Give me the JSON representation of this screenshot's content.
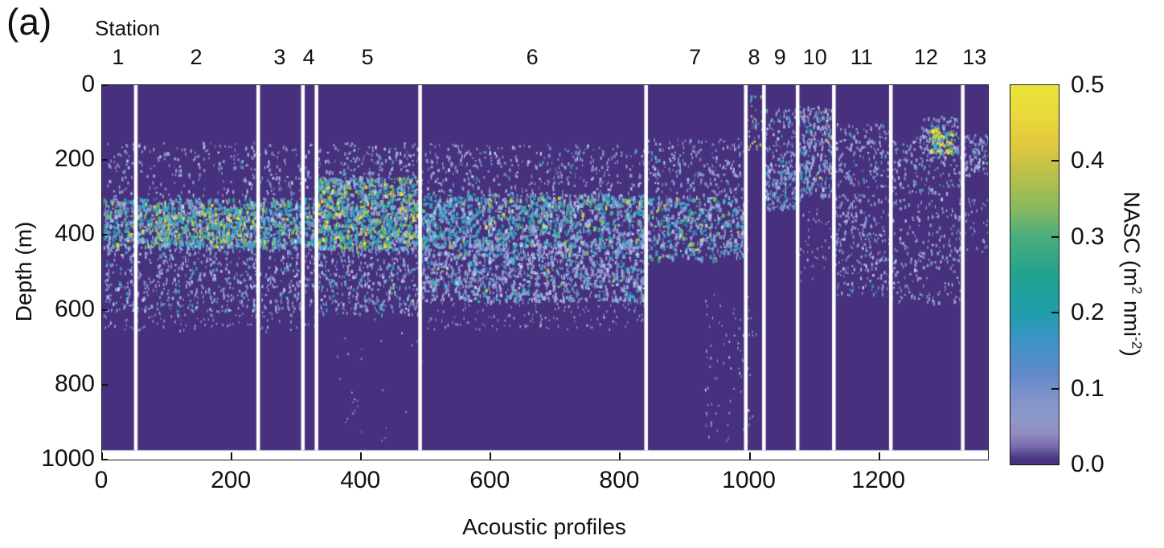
{
  "chart_data": {
    "type": "heatmap",
    "title_panel": "(a)",
    "station_axis_title": "Station",
    "xlabel": "Acoustic profiles",
    "ylabel": "Depth (m)",
    "x_range": [
      0,
      1368
    ],
    "depth_range_m": [
      0,
      1000
    ],
    "x_ticks": [
      0,
      200,
      400,
      600,
      800,
      1000,
      1200
    ],
    "y_ticks": [
      0,
      200,
      400,
      600,
      800,
      1000
    ],
    "background_color": "#47307d",
    "divider_color": "#ffffff",
    "no_data_color": "#ffffff",
    "data_max_depth_m": 975,
    "frame_color": "#1a1a1a",
    "stations": [
      {
        "label": "1",
        "from": 0,
        "to": 52
      },
      {
        "label": "2",
        "from": 52,
        "to": 241
      },
      {
        "label": "3",
        "from": 241,
        "to": 310
      },
      {
        "label": "4",
        "from": 310,
        "to": 331
      },
      {
        "label": "5",
        "from": 331,
        "to": 491
      },
      {
        "label": "6",
        "from": 491,
        "to": 840
      },
      {
        "label": "7",
        "from": 840,
        "to": 994
      },
      {
        "label": "8",
        "from": 994,
        "to": 1022
      },
      {
        "label": "9",
        "from": 1022,
        "to": 1074
      },
      {
        "label": "10",
        "from": 1074,
        "to": 1130
      },
      {
        "label": "11",
        "from": 1130,
        "to": 1218
      },
      {
        "label": "12",
        "from": 1218,
        "to": 1329
      },
      {
        "label": "13",
        "from": 1329,
        "to": 1368
      }
    ],
    "colorbar": {
      "label": "NASC (m² nmi⁻²)",
      "label_parts": [
        {
          "text": "NASC (m"
        },
        {
          "text": "2",
          "sup": true
        },
        {
          "text": " nmi"
        },
        {
          "text": "-2",
          "sup": true
        },
        {
          "text": ")"
        }
      ],
      "range": [
        0.0,
        0.5
      ],
      "tick_values": [
        0.5,
        0.4,
        0.3,
        0.2,
        0.1,
        0.0
      ],
      "tick_labels": [
        "0.5",
        "0.4",
        "0.3",
        "0.2",
        "0.1",
        "0.0"
      ],
      "marked_tick_values": [
        0.4,
        0.3,
        0.2,
        0.1
      ],
      "colormap_stops": [
        [
          0.0,
          "#46317c"
        ],
        [
          0.008,
          "#4a3684"
        ],
        [
          0.015,
          "#5d4f96"
        ],
        [
          0.025,
          "#7a6fae"
        ],
        [
          0.04,
          "#8f8cc0"
        ],
        [
          0.06,
          "#8f97c9"
        ],
        [
          0.09,
          "#7e93cb"
        ],
        [
          0.12,
          "#6089c9"
        ],
        [
          0.16,
          "#3f93c8"
        ],
        [
          0.2,
          "#1f9dab"
        ],
        [
          0.25,
          "#21a28e"
        ],
        [
          0.3,
          "#4aad7d"
        ],
        [
          0.34,
          "#8cba5c"
        ],
        [
          0.38,
          "#b8c04a"
        ],
        [
          0.42,
          "#e0c83e"
        ],
        [
          0.46,
          "#ead83c"
        ],
        [
          0.5,
          "#e9e53a"
        ]
      ]
    },
    "palettes": {
      "low": [
        [
          "#8494cf",
          3
        ],
        [
          "#9aa7dc",
          4
        ],
        [
          "#b3bce6",
          2
        ],
        [
          "#ccd2ee",
          1
        ]
      ],
      "teal": [
        [
          "#2f9fc4",
          3
        ],
        [
          "#29aaa8",
          2
        ],
        [
          "#49b9d0",
          2
        ],
        [
          "#35b3c9",
          2
        ]
      ],
      "green": [
        [
          "#4eba70",
          2
        ],
        [
          "#83c94e",
          2
        ],
        [
          "#b6d838",
          1
        ]
      ],
      "yellow": [
        [
          "#e6e339",
          3
        ],
        [
          "#f4e11f",
          1
        ],
        [
          "#ffd93b",
          1
        ]
      ]
    },
    "features": [
      {
        "name": "upper-scatter-st1-4",
        "x": [
          5,
          331
        ],
        "depth": [
          150,
          295
        ],
        "count": 300,
        "mix": {
          "low": 0.93,
          "teal": 0.07
        },
        "size": [
          1,
          3,
          2,
          5
        ]
      },
      {
        "name": "upper-scatter-st5",
        "x": [
          331,
          491
        ],
        "depth": [
          150,
          250
        ],
        "count": 160,
        "mix": {
          "low": 0.9,
          "teal": 0.1
        },
        "size": [
          1,
          3,
          2,
          5
        ]
      },
      {
        "name": "upper-scatter-st6",
        "x": [
          491,
          840
        ],
        "depth": [
          155,
          295
        ],
        "count": 380,
        "mix": {
          "low": 0.92,
          "teal": 0.08
        },
        "size": [
          1,
          3,
          2,
          5
        ]
      },
      {
        "name": "upper-scatter-st7",
        "x": [
          840,
          994
        ],
        "depth": [
          140,
          295
        ],
        "count": 240,
        "mix": {
          "low": 0.9,
          "teal": 0.1
        },
        "size": [
          1,
          3,
          2,
          5
        ]
      },
      {
        "name": "dsl-st1-2",
        "x": [
          2,
          241
        ],
        "depth": [
          300,
          432
        ],
        "count": 1150,
        "mix": {
          "low": 0.4,
          "teal": 0.44,
          "green": 0.11,
          "yellow": 0.05
        },
        "size": [
          1,
          4,
          2,
          6
        ]
      },
      {
        "name": "dsl-st2-hotspot",
        "x": [
          80,
          235
        ],
        "depth": [
          330,
          420
        ],
        "count": 200,
        "mix": {
          "teal": 0.3,
          "green": 0.42,
          "yellow": 0.28
        },
        "size": [
          1,
          3,
          2,
          5
        ]
      },
      {
        "name": "dsl-st3-4",
        "x": [
          241,
          331
        ],
        "depth": [
          300,
          432
        ],
        "count": 430,
        "mix": {
          "low": 0.42,
          "teal": 0.44,
          "green": 0.1,
          "yellow": 0.04
        },
        "size": [
          1,
          4,
          2,
          6
        ]
      },
      {
        "name": "dsl-st5",
        "x": [
          331,
          491
        ],
        "depth": [
          245,
          435
        ],
        "count": 1300,
        "mix": {
          "low": 0.3,
          "teal": 0.42,
          "green": 0.17,
          "yellow": 0.11
        },
        "size": [
          1,
          4,
          2,
          6
        ]
      },
      {
        "name": "dsl-st5-deep",
        "x": [
          331,
          491
        ],
        "depth": [
          430,
          610
        ],
        "count": 420,
        "mix": {
          "low": 0.82,
          "teal": 0.16,
          "green": 0.02
        },
        "size": [
          1,
          3,
          2,
          5
        ]
      },
      {
        "name": "dsl-st6-upper",
        "x": [
          491,
          840
        ],
        "depth": [
          290,
          430
        ],
        "count": 1450,
        "mix": {
          "low": 0.5,
          "teal": 0.42,
          "green": 0.06,
          "yellow": 0.02
        },
        "size": [
          1,
          4,
          2,
          6
        ]
      },
      {
        "name": "dsl-st6-lower",
        "x": [
          491,
          840
        ],
        "depth": [
          420,
          575
        ],
        "count": 1250,
        "mix": {
          "low": 0.8,
          "teal": 0.18,
          "green": 0.02
        },
        "size": [
          1,
          4,
          2,
          6
        ]
      },
      {
        "name": "dsl-st6-tail",
        "x": [
          500,
          840
        ],
        "depth": [
          565,
          650
        ],
        "count": 160,
        "mix": {
          "low": 0.95,
          "teal": 0.05
        },
        "size": [
          1,
          2,
          2,
          4
        ]
      },
      {
        "name": "dsl-st7",
        "x": [
          840,
          994
        ],
        "depth": [
          295,
          465
        ],
        "count": 520,
        "mix": {
          "low": 0.55,
          "teal": 0.38,
          "green": 0.05,
          "yellow": 0.02
        },
        "size": [
          1,
          4,
          2,
          6
        ]
      },
      {
        "name": "fringe-st1-4",
        "x": [
          2,
          331
        ],
        "depth": [
          425,
          600
        ],
        "count": 700,
        "mix": {
          "low": 0.88,
          "teal": 0.12
        },
        "size": [
          1,
          3,
          2,
          5
        ]
      },
      {
        "name": "fringe-tail-st1-4",
        "x": [
          2,
          331
        ],
        "depth": [
          590,
          655
        ],
        "count": 120,
        "mix": {
          "low": 1.0
        },
        "size": [
          1,
          2,
          2,
          4
        ]
      },
      {
        "name": "deep-st7",
        "x": [
          930,
          1010
        ],
        "depth": [
          540,
          950
        ],
        "count": 80,
        "mix": {
          "low": 1.0
        },
        "size": [
          1,
          2,
          2,
          4
        ]
      },
      {
        "name": "deep-st5-sparse",
        "x": [
          360,
          500
        ],
        "depth": [
          620,
          950
        ],
        "count": 30,
        "mix": {
          "low": 1.0
        },
        "size": [
          1,
          2,
          2,
          3
        ]
      },
      {
        "name": "st8-streak",
        "x": [
          994,
          1022
        ],
        "depth": [
          25,
          170
        ],
        "count": 40,
        "mix": {
          "low": 0.5,
          "teal": 0.2,
          "yellow": 0.3
        },
        "size": [
          1,
          3,
          2,
          5
        ]
      },
      {
        "name": "st9-upper",
        "x": [
          1022,
          1074
        ],
        "depth": [
          60,
          230
        ],
        "count": 130,
        "mix": {
          "low": 0.85,
          "teal": 0.15
        },
        "size": [
          1,
          3,
          2,
          5
        ]
      },
      {
        "name": "st9-band",
        "x": [
          1022,
          1074
        ],
        "depth": [
          225,
          330
        ],
        "count": 150,
        "mix": {
          "low": 0.6,
          "teal": 0.4
        },
        "size": [
          1,
          3,
          2,
          5
        ]
      },
      {
        "name": "st10-cluster",
        "x": [
          1074,
          1130
        ],
        "depth": [
          55,
          300
        ],
        "count": 330,
        "mix": {
          "low": 0.82,
          "teal": 0.15,
          "yellow": 0.03
        },
        "size": [
          1,
          3,
          2,
          6
        ]
      },
      {
        "name": "st10-deep-sparse",
        "x": [
          1074,
          1130
        ],
        "depth": [
          320,
          520
        ],
        "count": 40,
        "mix": {
          "low": 1.0
        },
        "size": [
          1,
          2,
          2,
          4
        ]
      },
      {
        "name": "st11-upper",
        "x": [
          1130,
          1218
        ],
        "depth": [
          100,
          270
        ],
        "count": 170,
        "mix": {
          "low": 0.9,
          "teal": 0.1
        },
        "size": [
          1,
          3,
          2,
          5
        ]
      },
      {
        "name": "st11-mid",
        "x": [
          1130,
          1218
        ],
        "depth": [
          290,
          560
        ],
        "count": 260,
        "mix": {
          "low": 0.92,
          "teal": 0.08
        },
        "size": [
          1,
          3,
          2,
          5
        ]
      },
      {
        "name": "st12-upper",
        "x": [
          1218,
          1329
        ],
        "depth": [
          130,
          290
        ],
        "count": 170,
        "mix": {
          "low": 0.92,
          "teal": 0.08
        },
        "size": [
          1,
          3,
          2,
          5
        ]
      },
      {
        "name": "st12-hotspot-halo",
        "x": [
          1265,
          1320
        ],
        "depth": [
          80,
          200
        ],
        "count": 130,
        "mix": {
          "low": 0.8,
          "teal": 0.2
        },
        "size": [
          1,
          3,
          2,
          5
        ]
      },
      {
        "name": "st12-hotspot-core",
        "x": [
          1278,
          1312
        ],
        "depth": [
          110,
          180
        ],
        "count": 70,
        "mix": {
          "teal": 0.25,
          "green": 0.2,
          "yellow": 0.55
        },
        "size": [
          2,
          4,
          2,
          6
        ]
      },
      {
        "name": "st12-mid",
        "x": [
          1218,
          1329
        ],
        "depth": [
          300,
          580
        ],
        "count": 230,
        "mix": {
          "low": 0.93,
          "teal": 0.07
        },
        "size": [
          1,
          3,
          2,
          5
        ]
      },
      {
        "name": "st13-upper",
        "x": [
          1329,
          1368
        ],
        "depth": [
          130,
          240
        ],
        "count": 110,
        "mix": {
          "low": 0.85,
          "teal": 0.15
        },
        "size": [
          1,
          3,
          2,
          5
        ]
      },
      {
        "name": "st13-mid",
        "x": [
          1329,
          1368
        ],
        "depth": [
          300,
          460
        ],
        "count": 40,
        "mix": {
          "low": 1.0
        },
        "size": [
          1,
          2,
          2,
          4
        ]
      }
    ]
  }
}
